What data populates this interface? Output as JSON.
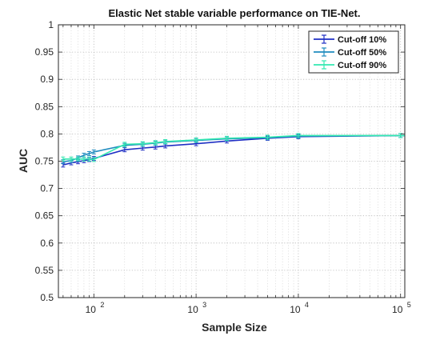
{
  "chart_data": {
    "type": "line",
    "title": "Elastic Net stable variable performance on TIE-Net.",
    "xlabel": "Sample Size",
    "ylabel": "AUC",
    "xscale": "log",
    "xlim": [
      45,
      110000
    ],
    "ylim": [
      0.5,
      1.0
    ],
    "grid": "on (dotted, major and minor)",
    "legend_position": "top-right",
    "x_ticks": [
      {
        "value": 100,
        "base": "10",
        "exp": "2"
      },
      {
        "value": 1000,
        "base": "10",
        "exp": "3"
      },
      {
        "value": 10000,
        "base": "10",
        "exp": "4"
      },
      {
        "value": 100000,
        "base": "10",
        "exp": "5"
      }
    ],
    "y_ticks": [
      "0.5",
      "0.55",
      "0.6",
      "0.65",
      "0.7",
      "0.75",
      "0.8",
      "0.85",
      "0.9",
      "0.95",
      "1"
    ],
    "x": [
      50,
      60,
      70,
      80,
      90,
      100,
      200,
      300,
      400,
      500,
      1000,
      2000,
      5000,
      10000,
      100000,
      110000
    ],
    "series": [
      {
        "name": "Cut-off 10%",
        "color": "#1f2fc4",
        "values": [
          0.743,
          0.747,
          0.749,
          0.751,
          0.753,
          0.755,
          0.771,
          0.774,
          0.776,
          0.778,
          0.782,
          0.787,
          0.792,
          0.795,
          0.797,
          0.797
        ]
      },
      {
        "name": "Cut-off 50%",
        "color": "#1f8bbf",
        "values": [
          0.749,
          0.751,
          0.756,
          0.761,
          0.764,
          0.767,
          0.779,
          0.781,
          0.783,
          0.785,
          0.788,
          0.791,
          0.793,
          0.796,
          0.797,
          0.797
        ]
      },
      {
        "name": "Cut-off 90%",
        "color": "#33e8b0",
        "values": [
          0.754,
          0.754,
          0.754,
          0.754,
          0.754,
          0.753,
          0.781,
          0.782,
          0.784,
          0.786,
          0.789,
          0.792,
          0.794,
          0.797,
          0.797,
          0.797
        ]
      }
    ]
  }
}
